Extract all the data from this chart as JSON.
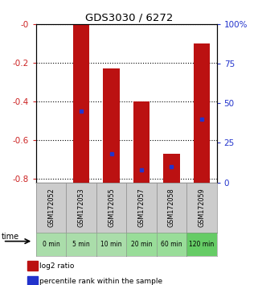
{
  "title": "GDS3030 / 6272",
  "samples": [
    "GSM172052",
    "GSM172053",
    "GSM172055",
    "GSM172057",
    "GSM172058",
    "GSM172059"
  ],
  "time_labels": [
    "0 min",
    "5 min",
    "10 min",
    "20 min",
    "60 min",
    "120 min"
  ],
  "bar_top": [
    null,
    0.0,
    -0.23,
    -0.4,
    -0.67,
    -0.1
  ],
  "bar_bottom": -0.82,
  "bar_color": "#bb1111",
  "percentile_ranks": [
    null,
    45,
    18,
    8,
    10,
    40
  ],
  "percentile_color": "#2233cc",
  "yticks_left": [
    0,
    -0.2,
    -0.4,
    -0.6,
    -0.8
  ],
  "ytick_left_labels": [
    "-0",
    "-0.2",
    "-0.4",
    "-0.6",
    "-0.8"
  ],
  "ylabel_left_color": "#cc2222",
  "ylabel_right_color": "#2233cc",
  "right_pct": [
    100,
    75,
    50,
    25,
    0
  ],
  "right_pct_labels": [
    "100%",
    "75",
    "50",
    "25",
    "0"
  ],
  "legend_log2": "log2 ratio",
  "legend_pct": "percentile rank within the sample",
  "time_label": "time",
  "cell_bg": "#cccccc",
  "time_colors": [
    "#aaddaa",
    "#aaddaa",
    "#aaddaa",
    "#99dd99",
    "#99dd99",
    "#66cc66"
  ],
  "ymin": -0.82,
  "ymax": 0.0
}
